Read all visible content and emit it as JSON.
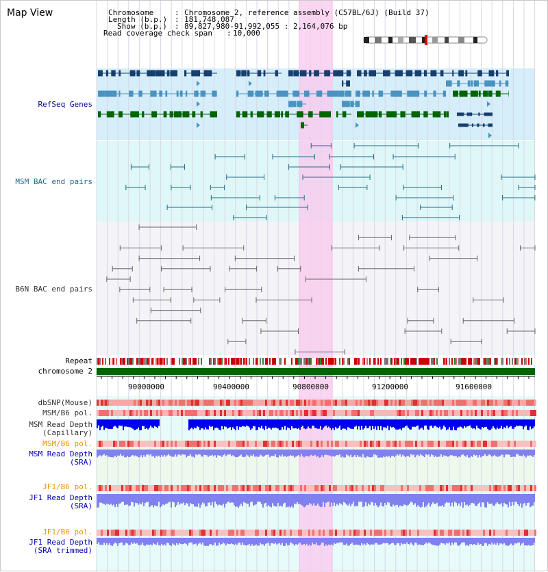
{
  "page_title": "Map View",
  "info": {
    "chromosome_label": "Chromosome",
    "chromosome_value": "Chromosome 2, reference assembly (C57BL/6J) (Build 37)",
    "length_label": "Length (b.p.)",
    "length_value": "181,748,087",
    "show_label": "Show (b.p.)",
    "show_value": "89,827,980-91,992,055 : 2,164,076 bp",
    "coverage_label": "Read coverage check span",
    "coverage_value": "10,000"
  },
  "tracks": {
    "refseq": "RefSeq Genes",
    "msm_bac": "MSM BAC end pairs",
    "b6n_bac": "B6N BAC end pairs",
    "repeat": "Repeat",
    "chromosome": "chromosome 2",
    "dbsnp": "dbSNP(Mouse)",
    "msm_b6_pol_1": "MSM/B6 pol.",
    "msm_depth_cap_1": "MSM Read Depth",
    "msm_depth_cap_2": "(Capillary)",
    "msm_b6_pol_2": "MSM/B6 pol.",
    "msm_depth_sra_1": "MSM Read Depth",
    "msm_depth_sra_2": "(SRA)",
    "jf1_b6_pol_1": "JF1/B6 pol.",
    "jf1_depth_sra_1": "JF1 Read Depth",
    "jf1_depth_sra_2": "(SRA)",
    "jf1_b6_pol_2": "JF1/B6 pol.",
    "jf1_depth_trim_1": "JF1 Read Depth",
    "jf1_depth_trim_2": "(SRA trimmed)"
  },
  "axis": {
    "ticks": [
      "90000000",
      "90400000",
      "90800000",
      "91200000",
      "91600000"
    ]
  },
  "colors": {
    "navy_label": "#00008b",
    "teal_label": "#1f6b8c",
    "gray_label": "#333333",
    "orange_label": "#e69500",
    "blue_label": "#0000b0",
    "highlight": "#f9c8ee",
    "gene_dark": "#173f6e",
    "gene_light": "#4a92c0",
    "gene_green": "#006400",
    "refseq_bg": "#d6eefa",
    "msm_bg": "#dff7f7",
    "chromosome": "#006400",
    "depth_blue": "#0000ee",
    "depth_violet": "#8080ee",
    "snp": "#f08080"
  }
}
